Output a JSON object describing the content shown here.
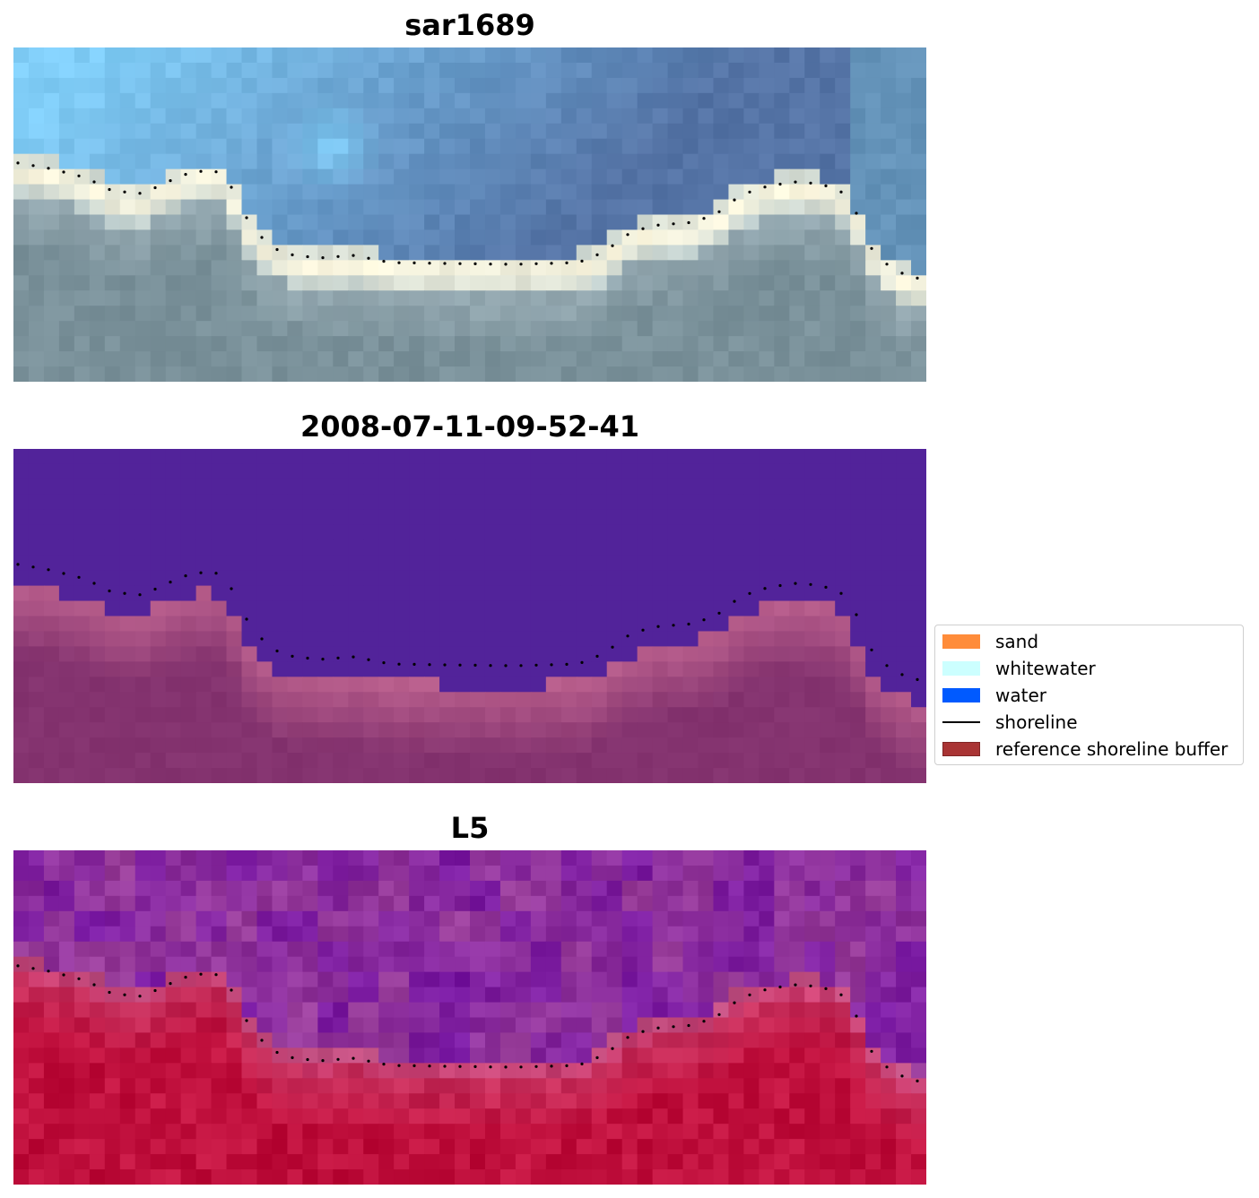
{
  "panels": [
    {
      "title": "sar1689"
    },
    {
      "title": "2008-07-11-09-52-41"
    },
    {
      "title": "L5"
    }
  ],
  "legend": {
    "items": [
      {
        "label": "sand",
        "color": "#ff8c3a"
      },
      {
        "label": "whitewater",
        "color": "#ccffff"
      },
      {
        "label": "water",
        "color": "#005aff"
      },
      {
        "label": "shoreline",
        "color": "#000000"
      },
      {
        "label": "reference shoreline buffer",
        "color": "#a52a2a"
      }
    ]
  },
  "colors": {
    "rgb_sky_light": "#80cdf7",
    "rgb_blue_deep": "#5574a6",
    "rgb_sand_bright": "#fff9e0",
    "rgb_land_gray": "#7a919a",
    "class_water_purple": "#52239a",
    "class_land_mauve": "#84336f",
    "index_water_violet": "#7a1aa3",
    "index_land_crimson": "#c0103d"
  }
}
